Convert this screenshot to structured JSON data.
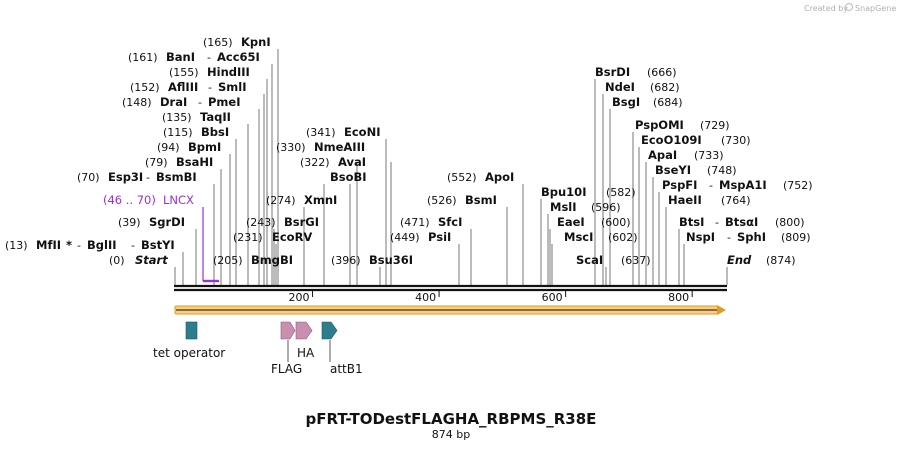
{
  "credit": {
    "text": "Created by",
    "brand": "SnapGene"
  },
  "title": "pFRT-TODestFLAGHA_RBPMS_R38E",
  "length_label": "874 bp",
  "axis": {
    "start": 0,
    "end": 874,
    "ticks": [
      200,
      400,
      600,
      800
    ],
    "start_label": "Start",
    "end_label": "End"
  },
  "site_labels": [
    {
      "pos": "(165)",
      "name": "KpnI"
    },
    {
      "pos": "(161)",
      "name": "BanI",
      "sep": "-",
      "name2": "Acc65I"
    },
    {
      "pos": "(155)",
      "name": "HindIII"
    },
    {
      "pos": "(152)",
      "name": "AflIII",
      "sep": "-",
      "name2": "SmlI"
    },
    {
      "pos": "(148)",
      "name": "DraI",
      "sep": "-",
      "name2": "PmeI"
    },
    {
      "pos": "(135)",
      "name": "TaqII"
    },
    {
      "pos": "(115)",
      "name": "BbsI"
    },
    {
      "pos": "(94)",
      "name": "BpmI"
    },
    {
      "pos": "(79)",
      "name": "BsaHI"
    },
    {
      "pos": "(70)",
      "name": "Esp3I",
      "sep": "-",
      "name2": "BsmBI"
    },
    {
      "pos": "(39)",
      "name": "SgrDI"
    },
    {
      "pos": "(13)",
      "name": "MfII",
      "star": "*",
      "sep": "-",
      "name2": "BglII",
      "sep2": "-",
      "name3": "BstYI"
    },
    {
      "pos": "(0)",
      "name": "Start"
    },
    {
      "pos": "(205)",
      "name": "BmgBI"
    },
    {
      "pos": "(231)",
      "name": "EcoRV"
    },
    {
      "pos": "(243)",
      "name": "BsrGI"
    },
    {
      "pos": "(274)",
      "name": "XmnI"
    },
    {
      "pos": "(322)",
      "name": "AvaI"
    },
    {
      "pos": "(330)",
      "name": "NmeAIII"
    },
    {
      "pos": "(341)",
      "name": "EcoNI"
    },
    {
      "pos": "",
      "name": "BsoBI"
    },
    {
      "pos": "(396)",
      "name": "Bsu36I"
    },
    {
      "pos": "(449)",
      "name": "PsiI"
    },
    {
      "pos": "(471)",
      "name": "SfcI"
    },
    {
      "pos": "(526)",
      "name": "BsmI"
    },
    {
      "pos": "(552)",
      "name": "ApoI"
    },
    {
      "pos": "(666)",
      "name": "BsrDI"
    },
    {
      "pos": "(682)",
      "name": "NdeI"
    },
    {
      "pos": "(684)",
      "name": "BsgI"
    },
    {
      "pos": "(729)",
      "name": "PspOMI"
    },
    {
      "pos": "(730)",
      "name": "EcoO109I"
    },
    {
      "pos": "(733)",
      "name": "ApaI"
    },
    {
      "pos": "(748)",
      "name": "BseYI"
    },
    {
      "pos": "(752)",
      "name": "PspFI",
      "sep": "-",
      "name2": "MspA1I"
    },
    {
      "pos": "(764)",
      "name": "HaeII"
    },
    {
      "pos": "(582)",
      "name": "Bpu10I"
    },
    {
      "pos": "(596)",
      "name": "MslI"
    },
    {
      "pos": "(600)",
      "name": "EaeI"
    },
    {
      "pos": "(602)",
      "name": "MscI"
    },
    {
      "pos": "(637)",
      "name": "ScaI"
    },
    {
      "pos": "(800)",
      "name": "BtsI",
      "sep": "-",
      "name2": "BtsαI"
    },
    {
      "pos": "(809)",
      "name": "NspI",
      "sep": "-",
      "name2": "SphI"
    },
    {
      "pos": "(874)",
      "name": "End"
    }
  ],
  "lncx": {
    "range": "(46 .. 70)",
    "name": "LNCX",
    "color": "#9932CC"
  },
  "features": [
    {
      "name": "tet operator",
      "color": "#2E7D8E"
    },
    {
      "name": "FLAG",
      "color": "#C98FB0"
    },
    {
      "name": "HA",
      "color": "#C98FB0"
    },
    {
      "name": "attB1",
      "color": "#2E7D8E"
    }
  ],
  "colors": {
    "orf": "#F5A623",
    "lncx": "#9932CC",
    "backbone": "#111111"
  }
}
